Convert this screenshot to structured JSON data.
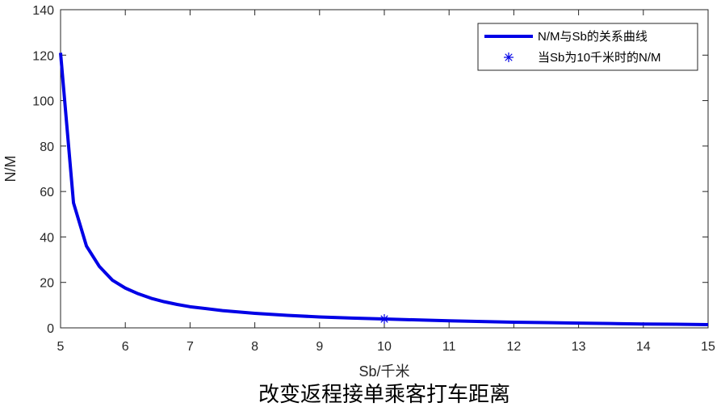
{
  "chart_data": {
    "type": "line",
    "title": "改变返程接单乘客打车距离",
    "xlabel": "Sb/千米",
    "ylabel": "N/M",
    "xlim": [
      5,
      15
    ],
    "ylim": [
      0,
      140
    ],
    "xticks": [
      "5",
      "6",
      "7",
      "8",
      "9",
      "10",
      "11",
      "12",
      "13",
      "14",
      "15"
    ],
    "yticks": [
      "0",
      "20",
      "40",
      "60",
      "80",
      "100",
      "120",
      "140"
    ],
    "grid": false,
    "legend_position": "top-right",
    "series": [
      {
        "name": "N/M与Sb的关系曲线",
        "color": "#0000e6",
        "x": [
          5.0,
          5.2,
          5.4,
          5.6,
          5.8,
          6.0,
          6.2,
          6.4,
          6.6,
          6.8,
          7.0,
          7.5,
          8.0,
          8.5,
          9.0,
          9.5,
          10.0,
          10.5,
          11.0,
          11.5,
          12.0,
          12.5,
          13.0,
          13.5,
          14.0,
          14.5,
          15.0
        ],
        "y": [
          121.0,
          55.0,
          36.0,
          27.0,
          21.0,
          17.5,
          15.0,
          13.0,
          11.5,
          10.3,
          9.3,
          7.6,
          6.4,
          5.5,
          4.8,
          4.3,
          3.9,
          3.5,
          3.1,
          2.8,
          2.5,
          2.3,
          2.1,
          1.9,
          1.7,
          1.6,
          1.4
        ]
      },
      {
        "name": "当Sb为10千米时的N/M",
        "type": "marker",
        "marker": "asterisk",
        "color": "#0000e6",
        "x": [
          10
        ],
        "y": [
          3.9
        ]
      }
    ]
  }
}
